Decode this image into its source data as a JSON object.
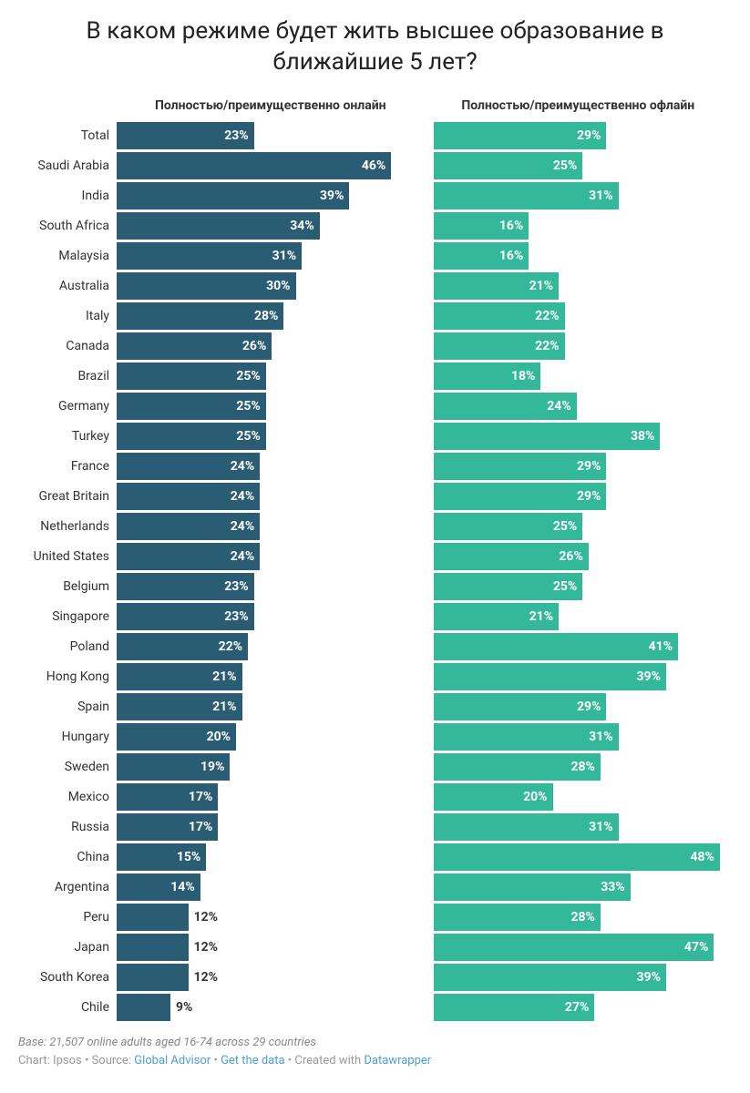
{
  "title": "В каком режиме будет жить высшее образование в ближайшие 5 лет?",
  "chart": {
    "type": "bar",
    "columns": [
      {
        "header": "Полностью/преимущественно онлайн",
        "color": "#2a5d74",
        "max": 50
      },
      {
        "header": "Полностью/преимущественно офлайн",
        "color": "#33b99a",
        "max": 50
      }
    ],
    "label_threshold_inside": 14,
    "rows": [
      {
        "label": "Total",
        "values": [
          23,
          29
        ]
      },
      {
        "label": "Saudi Arabia",
        "values": [
          46,
          25
        ]
      },
      {
        "label": "India",
        "values": [
          39,
          31
        ]
      },
      {
        "label": "South Africa",
        "values": [
          34,
          16
        ]
      },
      {
        "label": "Malaysia",
        "values": [
          31,
          16
        ]
      },
      {
        "label": "Australia",
        "values": [
          30,
          21
        ]
      },
      {
        "label": "Italy",
        "values": [
          28,
          22
        ]
      },
      {
        "label": "Canada",
        "values": [
          26,
          22
        ]
      },
      {
        "label": "Brazil",
        "values": [
          25,
          18
        ]
      },
      {
        "label": "Germany",
        "values": [
          25,
          24
        ]
      },
      {
        "label": "Turkey",
        "values": [
          25,
          38
        ]
      },
      {
        "label": "France",
        "values": [
          24,
          29
        ]
      },
      {
        "label": "Great Britain",
        "values": [
          24,
          29
        ]
      },
      {
        "label": "Netherlands",
        "values": [
          24,
          25
        ]
      },
      {
        "label": "United States",
        "values": [
          24,
          26
        ]
      },
      {
        "label": "Belgium",
        "values": [
          23,
          25
        ]
      },
      {
        "label": "Singapore",
        "values": [
          23,
          21
        ]
      },
      {
        "label": "Poland",
        "values": [
          22,
          41
        ]
      },
      {
        "label": "Hong Kong",
        "values": [
          21,
          39
        ]
      },
      {
        "label": "Spain",
        "values": [
          21,
          29
        ]
      },
      {
        "label": "Hungary",
        "values": [
          20,
          31
        ]
      },
      {
        "label": "Sweden",
        "values": [
          19,
          28
        ]
      },
      {
        "label": "Mexico",
        "values": [
          17,
          20
        ]
      },
      {
        "label": "Russia",
        "values": [
          17,
          31
        ]
      },
      {
        "label": "China",
        "values": [
          15,
          48
        ]
      },
      {
        "label": "Argentina",
        "values": [
          14,
          33
        ]
      },
      {
        "label": "Peru",
        "values": [
          12,
          28
        ]
      },
      {
        "label": "Japan",
        "values": [
          12,
          47
        ]
      },
      {
        "label": "South Korea",
        "values": [
          12,
          39
        ]
      },
      {
        "label": "Chile",
        "values": [
          9,
          27
        ]
      }
    ],
    "background": "#ffffff"
  },
  "footer": {
    "base": "Base: 21,507 online adults aged 16-74 across 29 countries",
    "chart_prefix": "Chart: ",
    "chart_author": "Ipsos",
    "sep": " • ",
    "source_prefix": "Source: ",
    "source_link": "Global Advisor",
    "get_data": "Get the data",
    "created_prefix": "Created with ",
    "created_link": "Datawrapper"
  }
}
